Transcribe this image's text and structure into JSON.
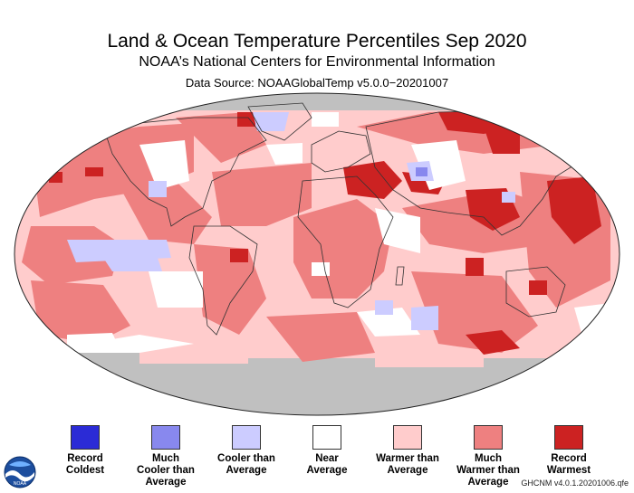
{
  "header": {
    "title": "Land & Ocean Temperature Percentiles Sep 2020",
    "subtitle": "NOAA’s National Centers for Environmental Information",
    "source": "Data Source: NOAAGlobalTemp v5.0.0−20201007"
  },
  "colors": {
    "record_coldest": "#2b2bd6",
    "much_cooler": "#8888ee",
    "cooler": "#ccccff",
    "near_average": "#ffffff",
    "warmer": "#ffcccc",
    "much_warmer": "#ee8080",
    "record_warmest": "#cc2222",
    "no_data": "#c0c0c0",
    "coastline": "#333333"
  },
  "legend": [
    {
      "label_line1": "Record",
      "label_line2": "Coldest",
      "label_line3": "",
      "color": "#2b2bd6"
    },
    {
      "label_line1": "Much",
      "label_line2": "Cooler than",
      "label_line3": "Average",
      "color": "#8888ee"
    },
    {
      "label_line1": "Cooler than",
      "label_line2": "Average",
      "label_line3": "",
      "color": "#ccccff"
    },
    {
      "label_line1": "Near",
      "label_line2": "Average",
      "label_line3": "",
      "color": "#ffffff"
    },
    {
      "label_line1": "Warmer than",
      "label_line2": "Average",
      "label_line3": "",
      "color": "#ffcccc"
    },
    {
      "label_line1": "Much",
      "label_line2": "Warmer than",
      "label_line3": "Average",
      "color": "#ee8080"
    },
    {
      "label_line1": "Record",
      "label_line2": "Warmest",
      "label_line3": "",
      "color": "#cc2222"
    }
  ],
  "footer": "GHCNM v4.0.1.20201006.qfe",
  "logo_text": "NOAA"
}
